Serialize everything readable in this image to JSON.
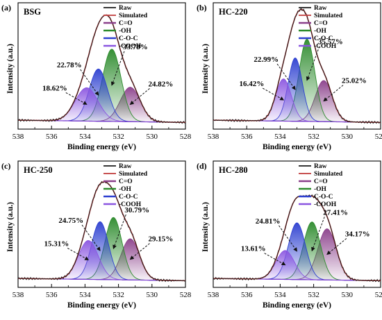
{
  "figure": {
    "axis_x_label": "Binding energy (eV)",
    "axis_y_label": "Intensity (a.u.)",
    "legend_labels": [
      "Raw",
      "Simulated",
      "C=O",
      "-OH",
      "C-O-C",
      "-COOH"
    ],
    "colors": {
      "raw": "#1a1a1a",
      "simulated": "#c03a3a",
      "c_o_double": "#8a3f8a",
      "oh": "#2b8a2b",
      "c_o_c": "#2c3fd0",
      "cooh": "#8a55e0",
      "baseline": "#7a3ad0"
    }
  },
  "chart_data": [
    {
      "type": "area",
      "panel_letter": "(a)",
      "title": "BSG",
      "xlabel": "Binding energy (eV)",
      "ylabel": "Intensity (a.u.)",
      "xlim": [
        538,
        528
      ],
      "x_ticks": [
        "538",
        "536",
        "534",
        "532",
        "530",
        "528"
      ],
      "legend": [
        "Raw",
        "Simulated",
        "C=O",
        "-OH",
        "C-O-C",
        "-COOH"
      ],
      "legend_position": "top-right",
      "peak_order": [
        "C=O",
        "-OH",
        "C-O-C",
        "-COOH"
      ],
      "peaks": [
        {
          "name": "C=O",
          "center": 531.3,
          "height": 0.31,
          "fwhm": 1.4,
          "label": "24.82%"
        },
        {
          "name": "-OH",
          "center": 532.4,
          "height": 0.65,
          "fwhm": 1.3,
          "label": "33.78%"
        },
        {
          "name": "C-O-C",
          "center": 533.2,
          "height": 0.47,
          "fwhm": 1.3,
          "label": "22.78%"
        },
        {
          "name": "-COOH",
          "center": 533.9,
          "height": 0.3,
          "fwhm": 1.6,
          "label": "18.62%"
        }
      ]
    },
    {
      "type": "area",
      "panel_letter": "(b)",
      "title": "HC-220",
      "xlabel": "Binding energy (eV)",
      "ylabel": "Intensity (a.u.)",
      "xlim": [
        538,
        528
      ],
      "x_ticks": [
        "538",
        "536",
        "534",
        "532",
        "530",
        "528"
      ],
      "legend": [
        "Raw",
        "Simulated",
        "C=O",
        "-OH",
        "C-O-C",
        "-COOH"
      ],
      "legend_position": "top-right",
      "peak_order": [
        "C=O",
        "-OH",
        "C-O-C",
        "-COOH"
      ],
      "peaks": [
        {
          "name": "C=O",
          "center": 531.4,
          "height": 0.37,
          "fwhm": 1.2,
          "label": "25.02%"
        },
        {
          "name": "-OH",
          "center": 532.4,
          "height": 0.74,
          "fwhm": 1.1,
          "label": "35.57%"
        },
        {
          "name": "C-O-C",
          "center": 533.1,
          "height": 0.57,
          "fwhm": 1.0,
          "label": "22.99%"
        },
        {
          "name": "-COOH",
          "center": 533.8,
          "height": 0.38,
          "fwhm": 1.1,
          "label": "16.42%"
        }
      ]
    },
    {
      "type": "area",
      "panel_letter": "(c)",
      "title": "HC-250",
      "xlabel": "Binding energy (eV)",
      "ylabel": "Intensity (a.u.)",
      "xlim": [
        538,
        528
      ],
      "x_ticks": [
        "538",
        "536",
        "534",
        "532",
        "530",
        "528"
      ],
      "legend": [
        "Raw",
        "Simulated",
        "C=O",
        "-OH",
        "C-O-C",
        "-COOH"
      ],
      "legend_position": "top-right",
      "peak_order": [
        "C=O",
        "-OH",
        "C-O-C",
        "-COOH"
      ],
      "peaks": [
        {
          "name": "C=O",
          "center": 531.3,
          "height": 0.37,
          "fwhm": 1.3,
          "label": "29.15%"
        },
        {
          "name": "-OH",
          "center": 532.3,
          "height": 0.56,
          "fwhm": 1.2,
          "label": "30.79%"
        },
        {
          "name": "C-O-C",
          "center": 533.1,
          "height": 0.52,
          "fwhm": 1.2,
          "label": "24.75%"
        },
        {
          "name": "-COOH",
          "center": 533.8,
          "height": 0.35,
          "fwhm": 1.4,
          "label": "15.31%"
        }
      ]
    },
    {
      "type": "area",
      "panel_letter": "(d)",
      "title": "HC-280",
      "xlabel": "Binding energy (eV)",
      "ylabel": "Intensity (a.u.)",
      "xlim": [
        538,
        528
      ],
      "x_ticks": [
        "538",
        "536",
        "534",
        "532",
        "530",
        "528"
      ],
      "legend": [
        "Raw",
        "Simulated",
        "C=O",
        "-OH",
        "C-O-C",
        "-COOH"
      ],
      "legend_position": "top-right",
      "peak_order": [
        "C=O",
        "-OH",
        "C-O-C",
        "-COOH"
      ],
      "peaks": [
        {
          "name": "C=O",
          "center": 531.2,
          "height": 0.46,
          "fwhm": 1.3,
          "label": "34.17%"
        },
        {
          "name": "-OH",
          "center": 532.1,
          "height": 0.52,
          "fwhm": 1.2,
          "label": "27.41%"
        },
        {
          "name": "C-O-C",
          "center": 533.0,
          "height": 0.51,
          "fwhm": 1.2,
          "label": "24.81%"
        },
        {
          "name": "-COOH",
          "center": 533.7,
          "height": 0.26,
          "fwhm": 1.3,
          "label": "13.61%"
        }
      ]
    }
  ]
}
